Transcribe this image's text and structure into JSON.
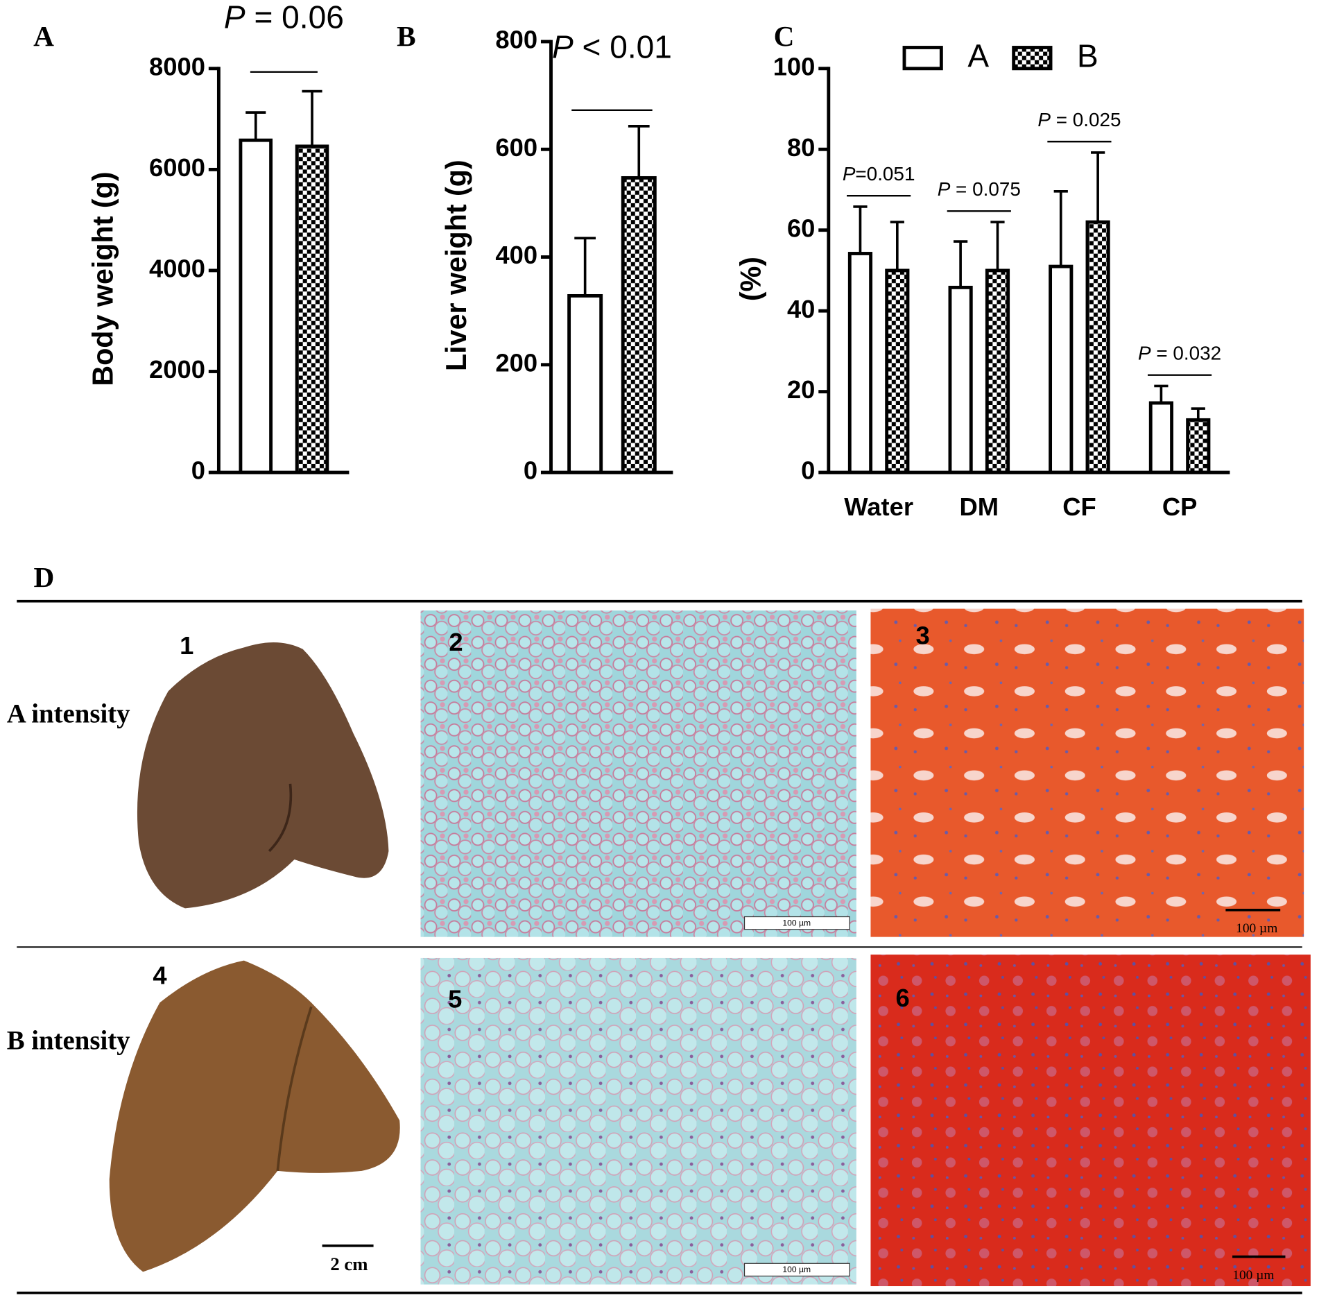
{
  "chart_data": [
    {
      "type": "bar",
      "panel": "A",
      "annotation": "P = 0.06",
      "ylabel": "Body weight (g)",
      "categories": [
        null
      ],
      "series": [
        {
          "color": "#ffffff",
          "pattern": "open",
          "values": [
            6580
          ],
          "errors": [
            550
          ]
        },
        {
          "color": "#000000",
          "pattern": "checkered",
          "values": [
            6460
          ],
          "errors": [
            1090
          ]
        }
      ],
      "ylim": [
        0,
        8000
      ],
      "yticks": [
        0,
        2000,
        4000,
        6000,
        8000
      ]
    },
    {
      "type": "bar",
      "panel": "B",
      "annotation": "P < 0.01",
      "ylabel": "Liver weight (g)",
      "categories": [
        null
      ],
      "series": [
        {
          "color": "#ffffff",
          "pattern": "open",
          "values": [
            328
          ],
          "errors": [
            107
          ]
        },
        {
          "color": "#000000",
          "pattern": "checkered",
          "values": [
            547
          ],
          "errors": [
            96
          ]
        }
      ],
      "ylim": [
        0,
        800
      ],
      "yticks": [
        0,
        200,
        400,
        600,
        800
      ]
    },
    {
      "type": "bar",
      "panel": "C",
      "ylabel": "(%)",
      "categories": [
        "Water",
        "DM",
        "CF",
        "CP"
      ],
      "p_values": [
        "P=0.051",
        "P = 0.075",
        "P = 0.025",
        "P = 0.032"
      ],
      "series": [
        {
          "name": "A",
          "color": "#ffffff",
          "pattern": "open",
          "values": [
            54.2,
            45.8,
            51,
            17.2
          ],
          "errors": [
            11.6,
            11.4,
            18.6,
            4.2
          ]
        },
        {
          "name": "B",
          "color": "#000000",
          "pattern": "checkered",
          "values": [
            50,
            50,
            62,
            13
          ],
          "errors": [
            12,
            12,
            17.2,
            2.8
          ]
        }
      ],
      "ylim": [
        0,
        100
      ],
      "yticks": [
        0,
        20,
        40,
        60,
        80,
        100
      ],
      "legend": "top"
    }
  ],
  "panel_d": {
    "label": "D",
    "rows": [
      {
        "label": "A intensity",
        "images": [
          {
            "number": "1"
          },
          {
            "number": "2",
            "scale": "100 µm"
          },
          {
            "number": "3",
            "scale": "100 µm"
          }
        ]
      },
      {
        "label": "B intensity",
        "images": [
          {
            "number": "4",
            "scale": "2 cm"
          },
          {
            "number": "5",
            "scale": "100 µm"
          },
          {
            "number": "6",
            "scale": "100 µm"
          }
        ]
      }
    ]
  }
}
